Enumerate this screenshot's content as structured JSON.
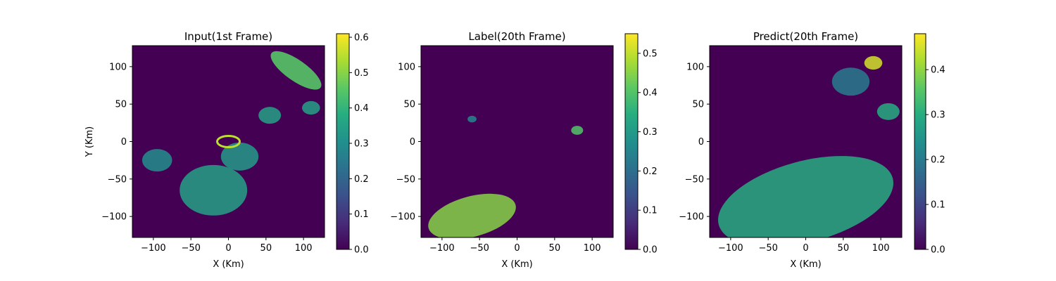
{
  "chart_data": [
    {
      "type": "heatmap",
      "title": "Input(1st Frame)",
      "xlabel": "X (Km)",
      "ylabel": "Y (Km)",
      "xlim": [
        -128,
        128
      ],
      "ylim": [
        -128,
        128
      ],
      "xticks": [
        -100,
        -50,
        0,
        50,
        100
      ],
      "yticks": [
        -100,
        -50,
        0,
        50,
        100
      ],
      "xtick_labels": [
        "−100",
        "−50",
        "0",
        "50",
        "100"
      ],
      "ytick_labels": [
        "−100",
        "−50",
        "0",
        "50",
        "100"
      ],
      "colormap": "viridis",
      "colorbar": {
        "min": 0.0,
        "max": 0.61,
        "ticks": [
          0.0,
          0.1,
          0.2,
          0.3,
          0.4,
          0.5,
          0.6
        ],
        "tick_labels": [
          "0.0",
          "0.1",
          "0.2",
          "0.3",
          "0.4",
          "0.5",
          "0.6"
        ]
      },
      "echo_regions": [
        {
          "kind": "ring-arc",
          "cx": 90,
          "cy": 95,
          "r": 40,
          "value": 0.45
        },
        {
          "kind": "blob",
          "cx": -20,
          "cy": -65,
          "r": 45,
          "value": 0.35
        },
        {
          "kind": "blob",
          "cx": 15,
          "cy": -20,
          "r": 25,
          "value": 0.33
        },
        {
          "kind": "blob",
          "cx": -95,
          "cy": -25,
          "r": 20,
          "value": 0.3
        },
        {
          "kind": "blob",
          "cx": 55,
          "cy": 35,
          "r": 15,
          "value": 0.35
        },
        {
          "kind": "blob",
          "cx": 110,
          "cy": 45,
          "r": 12,
          "value": 0.35
        },
        {
          "kind": "ring",
          "cx": 0,
          "cy": 0,
          "r": 15,
          "value": 0.55
        }
      ]
    },
    {
      "type": "heatmap",
      "title": "Label(20th Frame)",
      "xlabel": "X (Km)",
      "ylabel": "",
      "xlim": [
        -128,
        128
      ],
      "ylim": [
        -128,
        128
      ],
      "xticks": [
        -100,
        -50,
        0,
        50,
        100
      ],
      "yticks": [
        -100,
        -50,
        0,
        50,
        100
      ],
      "xtick_labels": [
        "−100",
        "−50",
        "0",
        "50",
        "100"
      ],
      "ytick_labels": [
        "−100",
        "−50",
        "0",
        "50",
        "100"
      ],
      "colormap": "viridis",
      "colorbar": {
        "min": 0.0,
        "max": 0.55,
        "ticks": [
          0.0,
          0.1,
          0.2,
          0.3,
          0.4,
          0.5
        ],
        "tick_labels": [
          "0.0",
          "0.1",
          "0.2",
          "0.3",
          "0.4",
          "0.5"
        ]
      },
      "echo_regions": [
        {
          "kind": "band",
          "cx": -60,
          "cy": -100,
          "r": 60,
          "value": 0.45
        },
        {
          "kind": "blob",
          "cx": 80,
          "cy": 15,
          "r": 8,
          "value": 0.4
        },
        {
          "kind": "blob",
          "cx": -60,
          "cy": 30,
          "r": 6,
          "value": 0.25
        }
      ]
    },
    {
      "type": "heatmap",
      "title": "Predict(20th Frame)",
      "xlabel": "X (Km)",
      "ylabel": "",
      "xlim": [
        -128,
        128
      ],
      "ylim": [
        -128,
        128
      ],
      "xticks": [
        -100,
        -50,
        0,
        50,
        100
      ],
      "yticks": [
        -100,
        -50,
        0,
        50,
        100
      ],
      "xtick_labels": [
        "−100",
        "−50",
        "0",
        "50",
        "100"
      ],
      "ytick_labels": [
        "−100",
        "−50",
        "0",
        "50",
        "100"
      ],
      "colormap": "viridis",
      "colorbar": {
        "min": 0.0,
        "max": 0.48,
        "ticks": [
          0.0,
          0.1,
          0.2,
          0.3,
          0.4
        ],
        "tick_labels": [
          "0.0",
          "0.1",
          "0.2",
          "0.3",
          "0.4"
        ]
      },
      "echo_regions": [
        {
          "kind": "band",
          "cx": 0,
          "cy": -80,
          "r": 120,
          "value": 0.3
        },
        {
          "kind": "blob",
          "cx": 90,
          "cy": 105,
          "r": 12,
          "value": 0.45
        },
        {
          "kind": "blob",
          "cx": 110,
          "cy": 40,
          "r": 15,
          "value": 0.3
        },
        {
          "kind": "blob",
          "cx": 60,
          "cy": 80,
          "r": 25,
          "value": 0.2
        }
      ]
    }
  ]
}
